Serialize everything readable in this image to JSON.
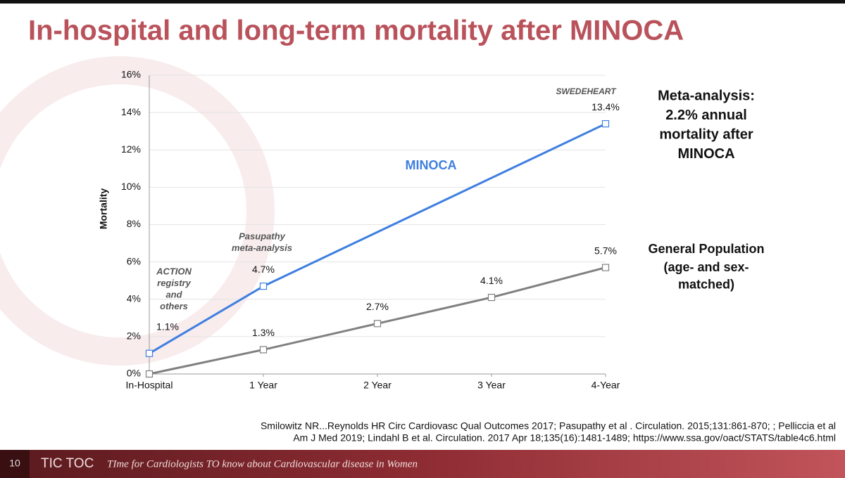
{
  "title": "In-hospital and long-term mortality after MINOCA",
  "chart_data": {
    "type": "line",
    "y_label": "Mortality",
    "xlim": [
      0,
      4
    ],
    "xticks": [
      {
        "value": 0,
        "label": "In-Hospital"
      },
      {
        "value": 1,
        "label": "1 Year"
      },
      {
        "value": 2,
        "label": "2 Year"
      },
      {
        "value": 3,
        "label": "3 Year"
      },
      {
        "value": 4,
        "label": "4-Year"
      }
    ],
    "ylim": [
      0,
      16
    ],
    "yticks": [
      {
        "value": 0,
        "label": "0%"
      },
      {
        "value": 2,
        "label": "2%"
      },
      {
        "value": 4,
        "label": "4%"
      },
      {
        "value": 6,
        "label": "6%"
      },
      {
        "value": 8,
        "label": "8%"
      },
      {
        "value": 10,
        "label": "10%"
      },
      {
        "value": 12,
        "label": "12%"
      },
      {
        "value": 14,
        "label": "14%"
      },
      {
        "value": 16,
        "label": "16%"
      }
    ],
    "grid": true,
    "series": [
      {
        "name": "MINOCA",
        "color": "#3f7fe0",
        "x": [
          0,
          1,
          4
        ],
        "values": [
          1.1,
          4.7,
          13.4
        ],
        "value_labels": [
          "1.1%",
          "4.7%",
          "13.4%"
        ]
      },
      {
        "name": "General Population",
        "color": "#808080",
        "x": [
          0,
          1,
          2,
          3,
          4
        ],
        "values": [
          0,
          1.3,
          2.7,
          4.1,
          5.7
        ],
        "value_labels": [
          null,
          "1.3%",
          "2.7%",
          "4.1%",
          "5.7%"
        ]
      }
    ],
    "annotations": [
      {
        "lines": [
          "ACTION",
          "registry",
          "and",
          "others"
        ]
      },
      {
        "lines": [
          "Pasupathy",
          "meta-analysis"
        ]
      },
      {
        "lines": [
          "SWEDEHEART"
        ]
      },
      {
        "lines": [
          "Meta-analysis:",
          "2.2% annual",
          "mortality after",
          "MINOCA"
        ]
      },
      {
        "lines": [
          "(age- and sex-",
          "matched)"
        ]
      }
    ]
  },
  "footnote": [
    "Smilowitz NR...Reynolds HR Circ Cardiovasc Qual Outcomes 2017; Pasupathy et al . Circulation. 2015;131:861-870; ; Pelliccia et al",
    "Am J Med 2019;   Lindahl B et al. Circulation. 2017 Apr 18;135(16):1481-1489; https://www.ssa.gov/oact/STATS/table4c6.html"
  ],
  "footer": {
    "page": "10",
    "brand": "TIC TOC",
    "tagline": "TIme for Cardiologists TO know about Cardiovascular disease in Women"
  }
}
